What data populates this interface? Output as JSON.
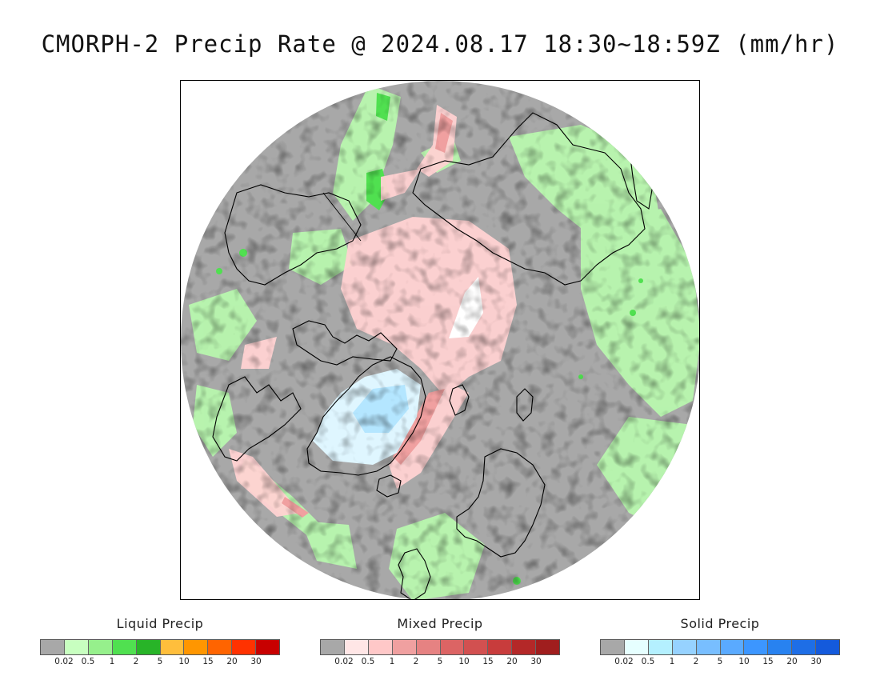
{
  "title": "CMORPH-2 Precip Rate @ 2024.08.17 18:30~18:59Z (mm/hr)",
  "map": {
    "projection": "north-polar-stereographic",
    "background_color": "#a8a8a8",
    "features": [
      "precipitation-field",
      "coastlines",
      "greenland-snow-area",
      "north-pole-clear-area"
    ]
  },
  "legends": [
    {
      "title": "Liquid Precip",
      "ticks": [
        "0.02",
        "0.5",
        "1",
        "2",
        "5",
        "10",
        "15",
        "20",
        "30"
      ],
      "colors": [
        "#a8a8a8",
        "#c8ffc0",
        "#96f08c",
        "#50e050",
        "#28b428",
        "#ffbe3c",
        "#ff9600",
        "#ff6400",
        "#ff3200",
        "#c80000"
      ]
    },
    {
      "title": "Mixed Precip",
      "ticks": [
        "0.02",
        "0.5",
        "1",
        "2",
        "5",
        "10",
        "15",
        "20",
        "30"
      ],
      "colors": [
        "#a8a8a8",
        "#ffe6e6",
        "#ffc8c8",
        "#f0a0a0",
        "#e68282",
        "#dc6464",
        "#d25050",
        "#c83c3c",
        "#b42828",
        "#a01e1e"
      ]
    },
    {
      "title": "Solid Precip",
      "ticks": [
        "0.02",
        "0.5",
        "1",
        "2",
        "5",
        "10",
        "15",
        "20",
        "30"
      ],
      "colors": [
        "#a8a8a8",
        "#e6ffff",
        "#b4f0ff",
        "#96d2ff",
        "#78beff",
        "#5aaaff",
        "#3c96ff",
        "#2882f0",
        "#1e6ee6",
        "#145adc"
      ]
    }
  ]
}
